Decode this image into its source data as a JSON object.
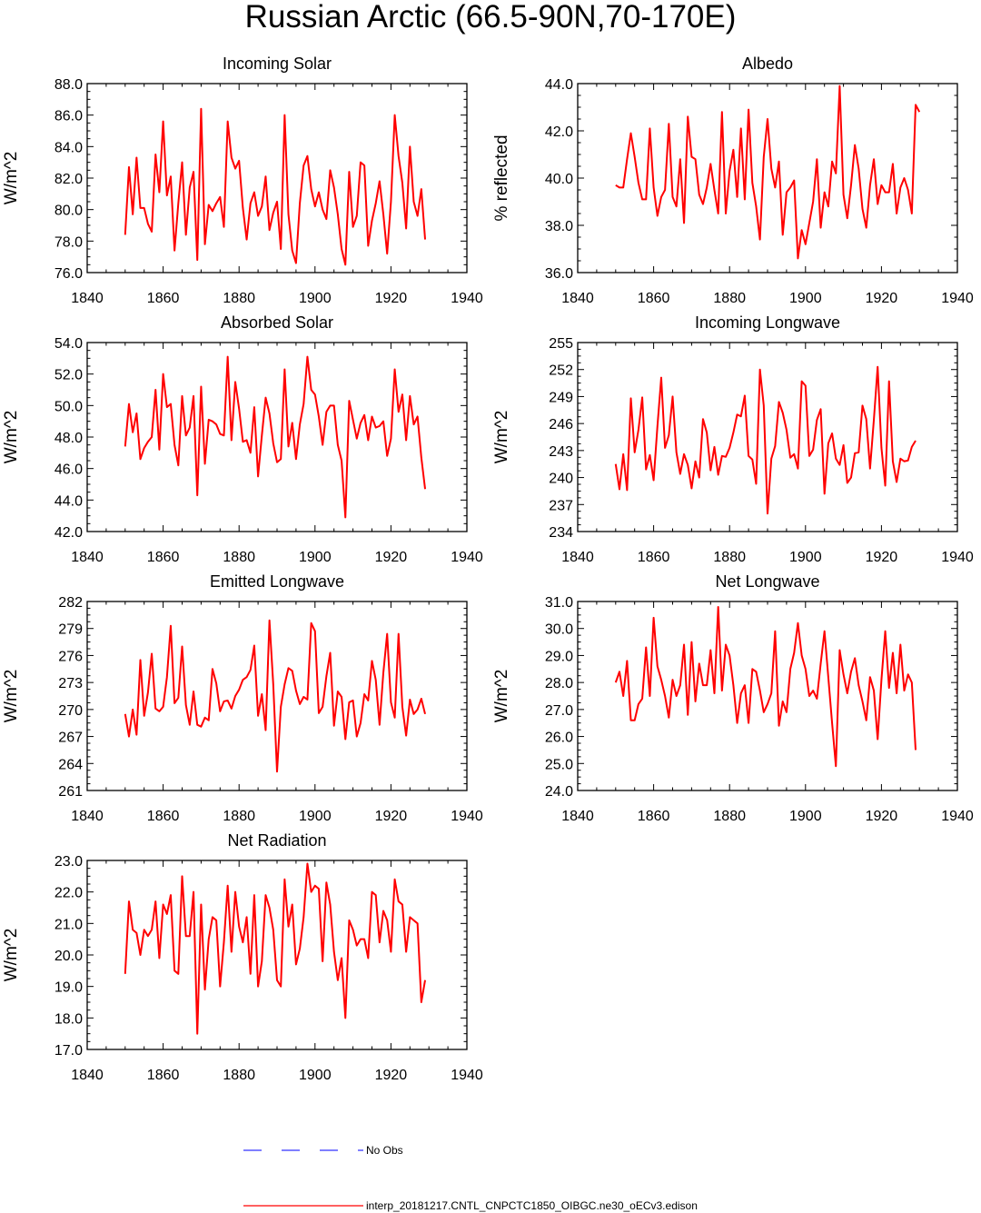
{
  "figure_title": "Russian Arctic (66.5-90N,70-170E)",
  "legend": {
    "entries": [
      {
        "label": "No Obs",
        "color": "#3333ff",
        "style": "dashed"
      },
      {
        "label": "interp_20181217.CNTL_CNPCTC1850_OIBGC.ne30_oECv3.edison",
        "color": "#ff0000",
        "style": "solid"
      }
    ]
  },
  "chart_data": [
    {
      "type": "line",
      "title": "Incoming Solar",
      "ylabel": "W/m^2",
      "xlabel": "",
      "xlim": [
        1840,
        1940
      ],
      "ylim": [
        76,
        88
      ],
      "xticks": [
        1840,
        1860,
        1880,
        1900,
        1920,
        1940
      ],
      "yticks": [
        76,
        78,
        80,
        82,
        84,
        86,
        88
      ],
      "ytick_labels": [
        "76.0",
        "78.0",
        "80.0",
        "82.0",
        "84.0",
        "86.0",
        "88.0"
      ],
      "series": [
        {
          "name": "interp_20181217.CNTL_CNPCTC1850_OIBGC.ne30_oECv3.edison",
          "color": "#ff0000",
          "x_start": 1850,
          "values": [
            78.4,
            82.7,
            79.7,
            83.3,
            80.1,
            80.1,
            79.1,
            78.6,
            83.5,
            81.1,
            85.6,
            80.9,
            82.1,
            77.4,
            80.4,
            83.0,
            78.4,
            81.4,
            82.4,
            76.8,
            86.4,
            77.8,
            80.3,
            79.9,
            80.4,
            80.8,
            78.9,
            85.6,
            83.3,
            82.6,
            83.1,
            80.1,
            78.1,
            80.4,
            81.1,
            79.6,
            80.2,
            82.1,
            78.7,
            79.8,
            80.5,
            77.5,
            86.0,
            79.7,
            77.4,
            76.6,
            80.4,
            82.8,
            83.4,
            81.3,
            80.2,
            81.1,
            80.0,
            79.4,
            82.5,
            81.4,
            79.7,
            77.5,
            76.5,
            82.4,
            78.9,
            79.6,
            83.0,
            82.8,
            77.7,
            79.3,
            80.4,
            81.8,
            79.7,
            77.2,
            80.5,
            86.0,
            83.4,
            81.7,
            78.8,
            84.0,
            80.5,
            79.6,
            81.3,
            78.1
          ]
        }
      ]
    },
    {
      "type": "line",
      "title": "Albedo",
      "ylabel": "% reflected",
      "xlabel": "",
      "xlim": [
        1840,
        1940
      ],
      "ylim": [
        36,
        44
      ],
      "xticks": [
        1840,
        1860,
        1880,
        1900,
        1920,
        1940
      ],
      "yticks": [
        36,
        38,
        40,
        42,
        44
      ],
      "ytick_labels": [
        "36.0",
        "38.0",
        "40.0",
        "42.0",
        "44.0"
      ],
      "series": [
        {
          "name": "interp_20181217.CNTL_CNPCTC1850_OIBGC.ne30_oECv3.edison",
          "color": "#ff0000",
          "x_start": 1850,
          "values": [
            39.7,
            39.6,
            39.6,
            40.8,
            41.9,
            40.9,
            39.8,
            39.1,
            39.1,
            42.1,
            39.6,
            38.4,
            39.2,
            39.5,
            42.3,
            39.2,
            38.8,
            40.8,
            38.1,
            42.6,
            40.9,
            40.8,
            39.3,
            38.9,
            39.6,
            40.6,
            39.5,
            38.5,
            42.8,
            38.5,
            40.3,
            41.2,
            39.2,
            42.1,
            39.1,
            42.9,
            39.8,
            38.8,
            37.4,
            40.9,
            42.5,
            40.4,
            39.6,
            40.7,
            37.6,
            39.4,
            39.6,
            39.9,
            36.6,
            37.8,
            37.2,
            38.1,
            39.0,
            40.8,
            37.9,
            39.4,
            38.8,
            40.7,
            40.2,
            43.9,
            39.3,
            38.3,
            39.7,
            41.4,
            40.4,
            38.7,
            37.9,
            39.7,
            40.8,
            38.9,
            39.7,
            39.4,
            39.4,
            40.6,
            38.5,
            39.6,
            40.0,
            39.5,
            38.5,
            43.1,
            42.8
          ]
        }
      ]
    },
    {
      "type": "line",
      "title": "Absorbed Solar",
      "ylabel": "W/m^2",
      "xlabel": "",
      "xlim": [
        1840,
        1940
      ],
      "ylim": [
        42,
        54
      ],
      "xticks": [
        1840,
        1860,
        1880,
        1900,
        1920,
        1940
      ],
      "yticks": [
        42,
        44,
        46,
        48,
        50,
        52,
        54
      ],
      "ytick_labels": [
        "42.0",
        "44.0",
        "46.0",
        "48.0",
        "50.0",
        "52.0",
        "54.0"
      ],
      "series": [
        {
          "name": "interp_20181217.CNTL_CNPCTC1850_OIBGC.ne30_oECv3.edison",
          "color": "#ff0000",
          "x_start": 1850,
          "values": [
            47.4,
            50.1,
            48.3,
            49.5,
            46.6,
            47.3,
            47.7,
            48.0,
            51.0,
            47.2,
            52.0,
            49.9,
            50.1,
            47.5,
            46.2,
            50.6,
            48.1,
            48.6,
            50.6,
            44.3,
            51.2,
            46.3,
            49.1,
            49.0,
            48.8,
            48.2,
            48.1,
            53.1,
            47.8,
            51.5,
            49.8,
            47.7,
            47.8,
            47.0,
            49.9,
            45.5,
            48.1,
            50.5,
            49.5,
            47.6,
            46.4,
            46.6,
            52.3,
            47.4,
            48.9,
            46.6,
            48.8,
            50.1,
            53.1,
            51.0,
            50.7,
            49.3,
            47.5,
            49.6,
            50.0,
            50.0,
            47.5,
            46.5,
            42.9,
            50.3,
            49.1,
            47.9,
            48.9,
            49.4,
            47.8,
            49.3,
            48.6,
            48.7,
            49.0,
            46.8,
            47.9,
            52.3,
            49.6,
            50.7,
            47.8,
            50.6,
            48.8,
            49.3,
            46.7,
            44.7
          ]
        }
      ]
    },
    {
      "type": "line",
      "title": "Incoming Longwave",
      "ylabel": "W/m^2",
      "xlabel": "",
      "xlim": [
        1840,
        1940
      ],
      "ylim": [
        234,
        255
      ],
      "xticks": [
        1840,
        1860,
        1880,
        1900,
        1920,
        1940
      ],
      "yticks": [
        234,
        237,
        240,
        243,
        246,
        249,
        252,
        255
      ],
      "ytick_labels": [
        "234",
        "237",
        "240",
        "243",
        "246",
        "249",
        "252",
        "255"
      ],
      "series": [
        {
          "name": "interp_20181217.CNTL_CNPCTC1850_OIBGC.ne30_oECv3.edison",
          "color": "#ff0000",
          "x_start": 1850,
          "values": [
            241.5,
            238.7,
            242.6,
            238.6,
            248.8,
            242.8,
            245.3,
            248.9,
            240.9,
            242.5,
            239.7,
            245.7,
            251.1,
            243.3,
            244.7,
            249.0,
            242.8,
            240.4,
            242.6,
            241.4,
            238.8,
            241.8,
            240.0,
            246.5,
            245.0,
            240.8,
            243.4,
            240.3,
            242.4,
            242.3,
            243.3,
            245.0,
            247.0,
            246.8,
            249.1,
            242.4,
            242.0,
            239.3,
            252.0,
            248.0,
            236.0,
            242.1,
            243.5,
            248.4,
            247.2,
            245.3,
            242.2,
            242.6,
            241.0,
            250.7,
            250.2,
            242.4,
            243.1,
            246.4,
            247.6,
            238.2,
            243.8,
            244.9,
            242.1,
            241.4,
            243.6,
            239.4,
            240.0,
            242.7,
            242.8,
            248.0,
            246.5,
            241.0,
            246.4,
            252.3,
            243.3,
            239.1,
            250.7,
            241.8,
            239.5,
            242.1,
            241.8,
            241.9,
            243.4,
            244.1
          ]
        }
      ]
    },
    {
      "type": "line",
      "title": "Emitted Longwave",
      "ylabel": "W/m^2",
      "xlabel": "",
      "xlim": [
        1840,
        1940
      ],
      "ylim": [
        261,
        282
      ],
      "xticks": [
        1840,
        1860,
        1880,
        1900,
        1920,
        1940
      ],
      "yticks": [
        261,
        264,
        267,
        270,
        273,
        276,
        279,
        282
      ],
      "ytick_labels": [
        "261",
        "264",
        "267",
        "270",
        "273",
        "276",
        "279",
        "282"
      ],
      "series": [
        {
          "name": "interp_20181217.CNTL_CNPCTC1850_OIBGC.ne30_oECv3.edison",
          "color": "#ff0000",
          "x_start": 1850,
          "values": [
            269.5,
            267.0,
            270.0,
            267.2,
            275.5,
            269.3,
            271.9,
            276.2,
            270.1,
            269.8,
            270.3,
            273.6,
            279.3,
            270.7,
            271.3,
            277.0,
            270.5,
            268.3,
            272.0,
            268.3,
            268.1,
            269.1,
            268.8,
            274.5,
            272.9,
            269.8,
            270.9,
            271.0,
            270.1,
            271.5,
            272.2,
            273.3,
            273.6,
            274.4,
            277.1,
            269.3,
            271.7,
            267.7,
            279.9,
            272.8,
            263.1,
            270.3,
            272.8,
            274.6,
            274.3,
            272.1,
            270.6,
            271.4,
            271.1,
            279.6,
            278.7,
            269.6,
            270.3,
            273.7,
            276.3,
            268.2,
            272.0,
            271.4,
            266.7,
            270.8,
            271.0,
            267.0,
            268.5,
            271.7,
            271.0,
            275.4,
            273.3,
            268.3,
            274.1,
            278.4,
            270.8,
            269.1,
            278.4,
            270.3,
            267.1,
            271.1,
            269.5,
            270.0,
            271.2,
            269.5
          ]
        }
      ]
    },
    {
      "type": "line",
      "title": "Net Longwave",
      "ylabel": "W/m^2",
      "xlabel": "",
      "xlim": [
        1840,
        1940
      ],
      "ylim": [
        24,
        31
      ],
      "xticks": [
        1840,
        1860,
        1880,
        1900,
        1920,
        1940
      ],
      "yticks": [
        24,
        25,
        26,
        27,
        28,
        29,
        30,
        31
      ],
      "ytick_labels": [
        "24.0",
        "25.0",
        "26.0",
        "27.0",
        "28.0",
        "29.0",
        "30.0",
        "31.0"
      ],
      "series": [
        {
          "name": "interp_20181217.CNTL_CNPCTC1850_OIBGC.ne30_oECv3.edison",
          "color": "#ff0000",
          "x_start": 1850,
          "values": [
            28.0,
            28.4,
            27.5,
            28.8,
            26.6,
            26.6,
            27.2,
            27.4,
            29.3,
            27.5,
            30.4,
            28.6,
            28.1,
            27.5,
            26.7,
            28.1,
            27.5,
            27.9,
            29.4,
            26.8,
            29.5,
            27.3,
            28.7,
            27.9,
            27.9,
            29.2,
            27.6,
            30.8,
            27.7,
            29.4,
            29.0,
            27.9,
            26.5,
            27.6,
            27.9,
            26.5,
            28.5,
            28.4,
            27.7,
            26.9,
            27.2,
            27.6,
            29.9,
            26.4,
            27.3,
            26.9,
            28.5,
            29.1,
            30.2,
            29.0,
            28.5,
            27.5,
            27.7,
            27.4,
            28.7,
            29.9,
            28.2,
            26.5,
            24.9,
            29.2,
            28.3,
            27.6,
            28.4,
            28.9,
            27.9,
            27.3,
            26.6,
            28.2,
            27.7,
            25.9,
            28.1,
            29.9,
            27.8,
            29.1,
            27.6,
            29.4,
            27.7,
            28.3,
            28.0,
            25.5
          ]
        }
      ]
    },
    {
      "type": "line",
      "title": "Net Radiation",
      "ylabel": "W/m^2",
      "xlabel": "",
      "xlim": [
        1840,
        1940
      ],
      "ylim": [
        17,
        23
      ],
      "xticks": [
        1840,
        1860,
        1880,
        1900,
        1920,
        1940
      ],
      "yticks": [
        17,
        18,
        19,
        20,
        21,
        22,
        23
      ],
      "ytick_labels": [
        "17.0",
        "18.0",
        "19.0",
        "20.0",
        "21.0",
        "22.0",
        "23.0"
      ],
      "series": [
        {
          "name": "interp_20181217.CNTL_CNPCTC1850_OIBGC.ne30_oECv3.edison",
          "color": "#ff0000",
          "x_start": 1850,
          "values": [
            19.4,
            21.7,
            20.8,
            20.7,
            20.0,
            20.8,
            20.6,
            20.8,
            21.7,
            19.9,
            21.6,
            21.3,
            21.9,
            19.5,
            19.4,
            22.5,
            20.6,
            20.6,
            22.0,
            17.5,
            21.6,
            18.9,
            20.5,
            21.2,
            21.1,
            19.0,
            20.4,
            22.2,
            20.1,
            22.0,
            20.9,
            20.4,
            21.2,
            19.4,
            21.9,
            19.0,
            19.8,
            21.9,
            21.5,
            20.8,
            19.2,
            19.0,
            22.4,
            20.9,
            21.6,
            19.7,
            20.2,
            21.2,
            22.9,
            22.0,
            22.2,
            22.1,
            19.8,
            22.3,
            21.6,
            20.1,
            19.2,
            19.9,
            18.0,
            21.1,
            20.8,
            20.3,
            20.5,
            20.5,
            19.9,
            22.0,
            21.9,
            20.4,
            21.4,
            21.1,
            20.1,
            22.4,
            21.7,
            21.6,
            20.1,
            21.2,
            21.1,
            21.0,
            18.5,
            19.2
          ]
        }
      ]
    }
  ]
}
